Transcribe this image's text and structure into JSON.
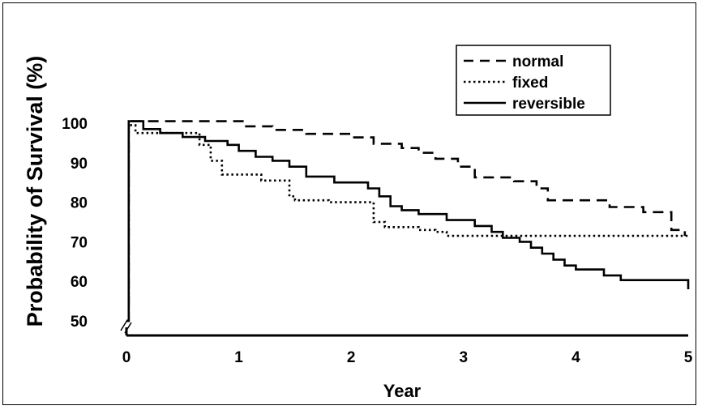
{
  "chart_data": {
    "type": "line",
    "title": "",
    "xlabel": "Year",
    "ylabel": "Probability of Survival (%)",
    "xlim": [
      0,
      5
    ],
    "ylim": [
      50,
      100
    ],
    "x_ticks": [
      "0",
      "1",
      "2",
      "3",
      "4",
      "5"
    ],
    "y_ticks": [
      "50",
      "60",
      "70",
      "80",
      "90",
      "100"
    ],
    "y_axis_break": true,
    "grid": false,
    "legend_position": "top-right",
    "series": [
      {
        "name": "normal",
        "style": "dashed",
        "x": [
          0,
          0.02,
          0.5,
          1.05,
          1.3,
          1.6,
          2.0,
          2.2,
          2.45,
          2.6,
          2.75,
          2.95,
          3.1,
          3.45,
          3.65,
          3.75,
          4.0,
          4.3,
          4.6,
          4.85,
          4.97
        ],
        "y": [
          50,
          100.5,
          100.5,
          99.2,
          98.3,
          97.3,
          96.4,
          94.8,
          93.7,
          92.5,
          91.0,
          89.0,
          86.3,
          85.3,
          83.5,
          80.5,
          80.5,
          78.8,
          77.5,
          73.0,
          71.5
        ]
      },
      {
        "name": "fixed",
        "style": "dotted",
        "x": [
          0,
          0.02,
          0.08,
          0.5,
          0.65,
          0.75,
          0.85,
          1.2,
          1.45,
          1.5,
          1.8,
          2.2,
          2.3,
          2.6,
          2.75,
          2.85,
          5.0
        ],
        "y": [
          50,
          99.5,
          97.5,
          97.5,
          94.5,
          90.5,
          87.0,
          85.5,
          81.5,
          80.5,
          80.0,
          75.0,
          73.7,
          73.0,
          72.5,
          71.5,
          71.5
        ]
      },
      {
        "name": "reversible",
        "style": "solid",
        "x": [
          0,
          0.02,
          0.15,
          0.3,
          0.5,
          0.7,
          0.9,
          1.0,
          1.15,
          1.3,
          1.45,
          1.6,
          1.85,
          2.15,
          2.25,
          2.35,
          2.45,
          2.6,
          2.85,
          3.1,
          3.25,
          3.35,
          3.5,
          3.6,
          3.7,
          3.8,
          3.9,
          4.0,
          4.25,
          4.4,
          4.95,
          5.0
        ],
        "y": [
          50,
          100.5,
          98.5,
          97.5,
          96.5,
          95.5,
          94.5,
          93.0,
          91.5,
          90.5,
          89.0,
          86.5,
          85.0,
          83.5,
          81.5,
          79.0,
          78.0,
          77.0,
          75.5,
          74.0,
          72.5,
          71.0,
          70.0,
          68.5,
          67.0,
          65.5,
          64.0,
          63.0,
          61.5,
          60.3,
          60.3,
          58.0
        ]
      }
    ]
  }
}
